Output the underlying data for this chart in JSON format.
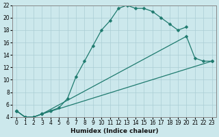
{
  "xlabel": "Humidex (Indice chaleur)",
  "bg_color": "#cce8ec",
  "grid_color": "#aacdd4",
  "line_color": "#1e7a6e",
  "xlim": [
    -0.5,
    23.5
  ],
  "ylim": [
    4,
    22
  ],
  "xticks": [
    0,
    1,
    2,
    3,
    4,
    5,
    6,
    7,
    8,
    9,
    10,
    11,
    12,
    13,
    14,
    15,
    16,
    17,
    18,
    19,
    20,
    21,
    22,
    23
  ],
  "yticks": [
    4,
    6,
    8,
    10,
    12,
    14,
    16,
    18,
    20,
    22
  ],
  "line1_x": [
    0,
    1,
    2,
    3,
    4,
    5,
    6,
    7,
    8,
    9,
    10,
    11,
    12,
    13,
    14,
    15,
    16,
    17,
    18,
    19,
    20
  ],
  "line1_y": [
    5,
    4,
    4,
    4.5,
    5,
    5.5,
    7,
    10.5,
    13,
    15.5,
    18,
    19.5,
    21.5,
    22,
    21.5,
    21.5,
    21,
    20,
    19,
    18,
    18.5
  ],
  "line2_x": [
    0,
    1,
    2,
    3,
    20,
    21,
    22,
    23
  ],
  "line2_y": [
    5,
    4,
    4,
    4.5,
    17,
    13.5,
    13,
    13
  ],
  "line3_x": [
    0,
    1,
    2,
    3,
    23
  ],
  "line3_y": [
    5,
    4,
    4,
    4.5,
    13
  ]
}
